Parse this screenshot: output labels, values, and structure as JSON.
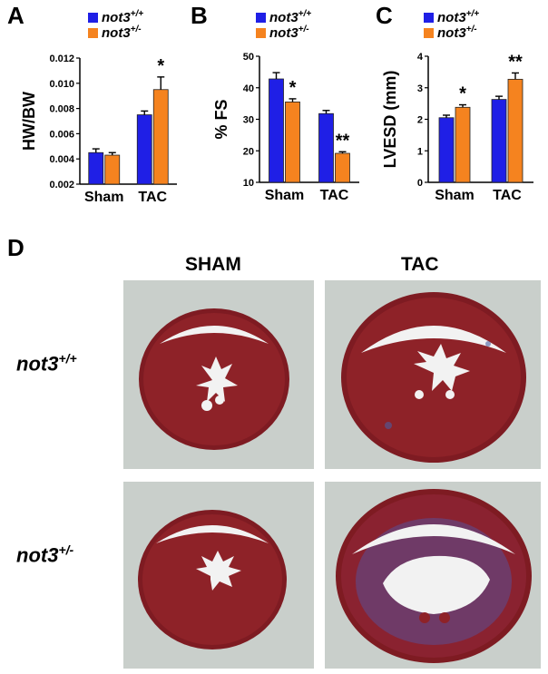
{
  "panels": {
    "a": "A",
    "b": "B",
    "c": "C",
    "d": "D"
  },
  "colors": {
    "wt": "#1f1fe6",
    "het": "#f5831f",
    "bg_histo": "#c7cec9",
    "tissue": "#8a1f24"
  },
  "legend": {
    "wt_base": "not3",
    "wt_sup": "+/+",
    "het_base": "not3",
    "het_sup": "+/-"
  },
  "chart_data": [
    {
      "type": "bar",
      "categories": [
        "Sham",
        "TAC"
      ],
      "series": [
        {
          "name": "not3+/+",
          "values": [
            0.0045,
            0.0075
          ],
          "errors": [
            0.0003,
            0.0003
          ]
        },
        {
          "name": "not3+/-",
          "values": [
            0.0043,
            0.0095
          ],
          "errors": [
            0.0002,
            0.001
          ]
        }
      ],
      "ylabel": "HW/BW",
      "ylim": [
        0.002,
        0.012
      ],
      "yticks": [
        0.002,
        0.004,
        0.006,
        0.008,
        0.01,
        0.012
      ],
      "ytick_labels": [
        "0.002",
        "0.004",
        "0.006",
        "0.008",
        "0.010",
        "0.012"
      ],
      "annotations": [
        {
          "category": "TAC",
          "series": 1,
          "text": "*"
        }
      ]
    },
    {
      "type": "bar",
      "categories": [
        "Sham",
        "TAC"
      ],
      "series": [
        {
          "name": "not3+/+",
          "values": [
            42.8,
            31.8
          ],
          "errors": [
            2.0,
            1.0
          ]
        },
        {
          "name": "not3+/-",
          "values": [
            35.5,
            19.2
          ],
          "errors": [
            1.0,
            0.5
          ]
        }
      ],
      "ylabel": "% FS",
      "ylim": [
        10,
        50
      ],
      "yticks": [
        10,
        20,
        30,
        40,
        50
      ],
      "ytick_labels": [
        "10",
        "20",
        "30",
        "40",
        "50"
      ],
      "annotations": [
        {
          "category": "Sham",
          "series": 1,
          "text": "*"
        },
        {
          "category": "TAC",
          "series": 1,
          "text": "**"
        }
      ]
    },
    {
      "type": "bar",
      "categories": [
        "Sham",
        "TAC"
      ],
      "series": [
        {
          "name": "not3+/+",
          "values": [
            2.05,
            2.63
          ],
          "errors": [
            0.08,
            0.1
          ]
        },
        {
          "name": "not3+/-",
          "values": [
            2.38,
            3.27
          ],
          "errors": [
            0.08,
            0.2
          ]
        }
      ],
      "ylabel": "LVESD (mm)",
      "ylim": [
        0,
        4
      ],
      "yticks": [
        0,
        1,
        2,
        3,
        4
      ],
      "ytick_labels": [
        "0",
        "1",
        "2",
        "3",
        "4"
      ],
      "annotations": [
        {
          "category": "Sham",
          "series": 1,
          "text": "*"
        },
        {
          "category": "TAC",
          "series": 1,
          "text": "**"
        }
      ]
    }
  ],
  "histology": {
    "columns": [
      "SHAM",
      "TAC"
    ],
    "rows": [
      {
        "base": "not3",
        "sup": "+/+"
      },
      {
        "base": "not3",
        "sup": "+/-"
      }
    ]
  }
}
